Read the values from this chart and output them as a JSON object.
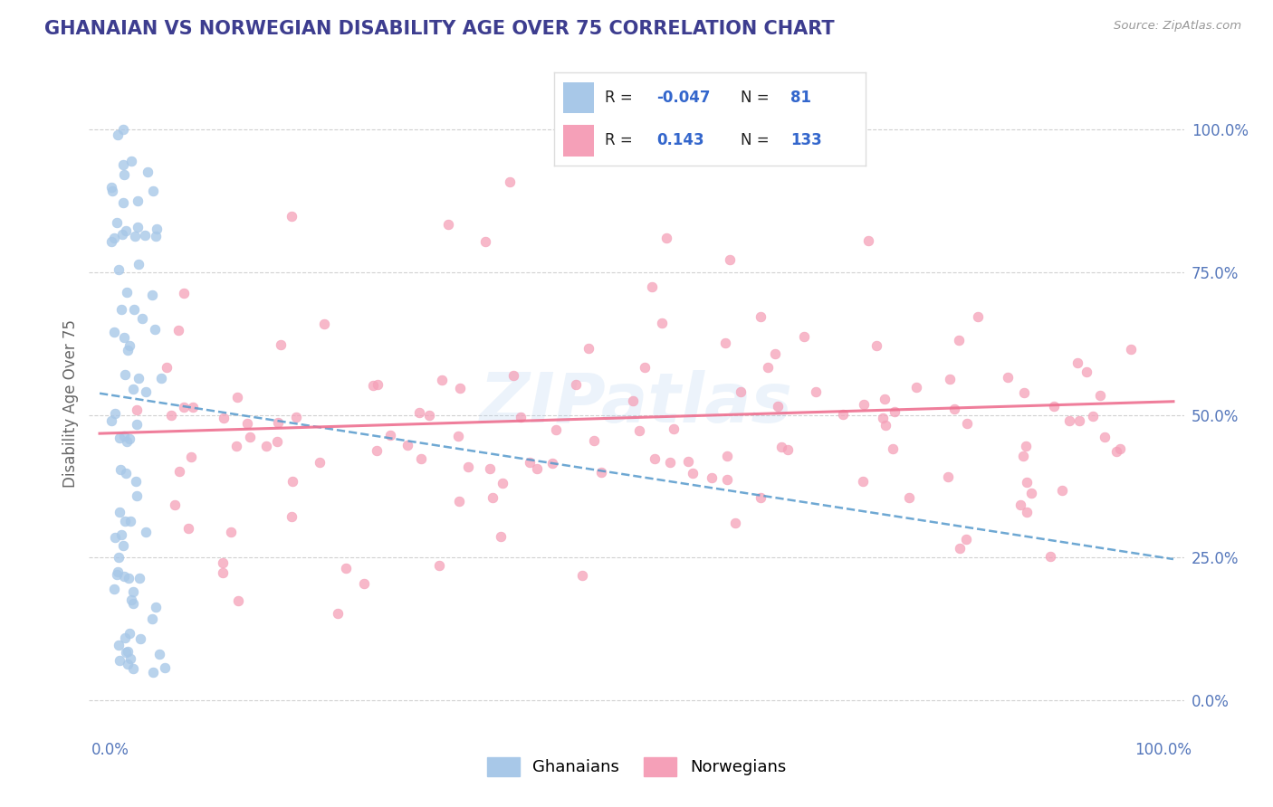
{
  "title": "GHANAIAN VS NORWEGIAN DISABILITY AGE OVER 75 CORRELATION CHART",
  "source": "Source: ZipAtlas.com",
  "ylabel": "Disability Age Over 75",
  "title_color": "#3d3d8f",
  "title_fontsize": 15,
  "watermark": "ZIPatlas",
  "ghanaian_color": "#a8c8e8",
  "norwegian_color": "#f5a0b8",
  "ghanaian_line_color": "#5599cc",
  "norwegian_line_color": "#ee7090",
  "background_color": "#ffffff",
  "tick_color": "#5577bb",
  "ylabel_color": "#666666",
  "source_color": "#999999"
}
